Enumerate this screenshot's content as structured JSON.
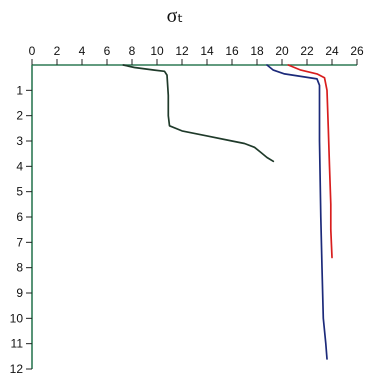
{
  "chart_data": {
    "type": "line",
    "title": "σₜ",
    "x_axis": {
      "position": "top",
      "range": [
        0,
        26
      ],
      "ticks": [
        0,
        2,
        4,
        6,
        8,
        10,
        12,
        14,
        16,
        18,
        20,
        22,
        24,
        26
      ],
      "label": ""
    },
    "y_axis": {
      "inverted": true,
      "range": [
        0,
        12
      ],
      "ticks": [
        1,
        2,
        3,
        4,
        5,
        6,
        7,
        8,
        9,
        10,
        11,
        12
      ],
      "label": ""
    },
    "grid": false,
    "legend": "none",
    "series": [
      {
        "color": "#1f3a2a",
        "points": [
          [
            7.3,
            0
          ],
          [
            8.2,
            0.1
          ],
          [
            9.8,
            0.2
          ],
          [
            10.6,
            0.25
          ],
          [
            10.8,
            0.4
          ],
          [
            10.9,
            1.2
          ],
          [
            10.9,
            2.0
          ],
          [
            11.0,
            2.4
          ],
          [
            12.0,
            2.6
          ],
          [
            14.0,
            2.8
          ],
          [
            16.0,
            3.0
          ],
          [
            17.0,
            3.1
          ],
          [
            17.8,
            3.25
          ],
          [
            18.3,
            3.45
          ],
          [
            18.8,
            3.65
          ],
          [
            19.3,
            3.8
          ]
        ]
      },
      {
        "color": "#1c2a7a",
        "points": [
          [
            18.8,
            0
          ],
          [
            19.3,
            0.2
          ],
          [
            20.2,
            0.35
          ],
          [
            21.5,
            0.45
          ],
          [
            22.8,
            0.55
          ],
          [
            23.0,
            0.8
          ],
          [
            23.0,
            3.0
          ],
          [
            23.1,
            6.0
          ],
          [
            23.2,
            8.0
          ],
          [
            23.3,
            10.0
          ],
          [
            23.5,
            11.0
          ],
          [
            23.6,
            11.6
          ]
        ]
      },
      {
        "color": "#d81e1e",
        "points": [
          [
            20.5,
            0
          ],
          [
            21.5,
            0.2
          ],
          [
            22.8,
            0.35
          ],
          [
            23.4,
            0.5
          ],
          [
            23.6,
            1.0
          ],
          [
            23.7,
            2.5
          ],
          [
            23.8,
            4.0
          ],
          [
            23.9,
            5.5
          ],
          [
            23.9,
            6.5
          ],
          [
            24.0,
            7.6
          ]
        ]
      }
    ]
  }
}
